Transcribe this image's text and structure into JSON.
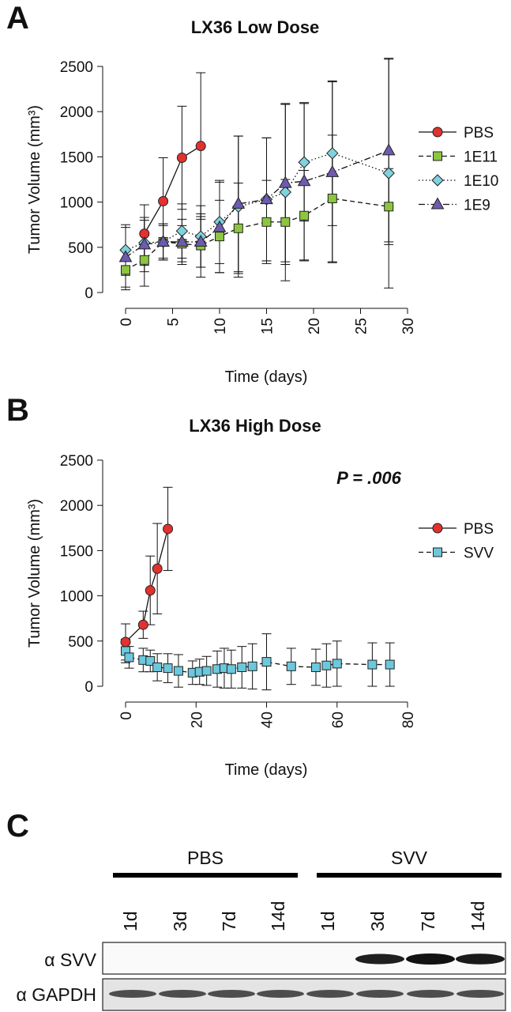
{
  "panel_labels": [
    "A",
    "B",
    "C"
  ],
  "chart_data": [
    {
      "type": "line",
      "title": "LX36 Low Dose",
      "x_label": "Time (days)",
      "y_label": "Tumor Volume (mm³)",
      "xlim": [
        0,
        30
      ],
      "xticks": [
        0,
        5,
        10,
        15,
        20,
        25,
        30
      ],
      "ylim": [
        0,
        2500
      ],
      "yticks": [
        0,
        500,
        1000,
        1500,
        2000,
        2500
      ],
      "legend": "right",
      "series": [
        {
          "name": "PBS",
          "color": "#e2312f",
          "marker": "circle",
          "line_style": "solid",
          "x": [
            2,
            4,
            6,
            8
          ],
          "values": [
            650,
            1010,
            1490,
            1620
          ],
          "errors": [
            320,
            480,
            570,
            810
          ]
        },
        {
          "name": "1E11",
          "color": "#8cc63e",
          "marker": "square",
          "line_style": "dashed",
          "x": [
            0,
            2,
            4,
            6,
            8,
            10,
            12,
            15,
            17,
            19,
            22,
            28
          ],
          "values": [
            250,
            360,
            560,
            540,
            520,
            620,
            710,
            780,
            780,
            850,
            1040,
            950
          ],
          "errors": [
            220,
            290,
            200,
            200,
            350,
            400,
            500,
            460,
            470,
            500,
            700,
            420
          ]
        },
        {
          "name": "1E10",
          "color": "#7fd3df",
          "marker": "diamond",
          "line_style": "dotted",
          "x": [
            0,
            2,
            4,
            6,
            8,
            10,
            12,
            15,
            17,
            19,
            22,
            28
          ],
          "values": [
            470,
            550,
            560,
            680,
            620,
            780,
            950,
            1030,
            1110,
            1440,
            1540,
            1320
          ],
          "errors": [
            280,
            250,
            200,
            300,
            340,
            460,
            780,
            680,
            980,
            650,
            800,
            1270
          ]
        },
        {
          "name": "1E9",
          "color": "#6e5baf",
          "marker": "triangle",
          "line_style": "dotdash",
          "x": [
            0,
            2,
            4,
            6,
            8,
            10,
            12,
            15,
            17,
            19,
            22,
            28
          ],
          "values": [
            390,
            530,
            560,
            560,
            560,
            720,
            980,
            1030,
            1210,
            1230,
            1330,
            1570
          ],
          "errors": [
            330,
            300,
            180,
            250,
            280,
            500,
            750,
            680,
            870,
            870,
            1000,
            1010
          ]
        }
      ]
    },
    {
      "type": "line",
      "title": "LX36 High Dose",
      "x_label": "Time (days)",
      "y_label": "Tumor Volume (mm³)",
      "annotation": "P = .006",
      "xlim": [
        0,
        80
      ],
      "xticks": [
        0,
        20,
        40,
        60,
        80
      ],
      "ylim": [
        0,
        2500
      ],
      "yticks": [
        0,
        500,
        1000,
        1500,
        2000,
        2500
      ],
      "legend": "right",
      "series": [
        {
          "name": "PBS",
          "color": "#e2312f",
          "marker": "circle",
          "line_style": "solid",
          "x": [
            0,
            5,
            7,
            9,
            12
          ],
          "values": [
            490,
            680,
            1060,
            1300,
            1740
          ],
          "errors": [
            200,
            150,
            380,
            500,
            460
          ]
        },
        {
          "name": "SVV",
          "color": "#6cc8dc",
          "marker": "square",
          "line_style": "dashed",
          "x": [
            0,
            1,
            5,
            7,
            9,
            12,
            15,
            19,
            21,
            23,
            26,
            28,
            30,
            33,
            36,
            40,
            47,
            54,
            57,
            60,
            70,
            75
          ],
          "values": [
            390,
            320,
            290,
            280,
            210,
            200,
            170,
            150,
            160,
            170,
            190,
            200,
            190,
            210,
            220,
            270,
            220,
            210,
            230,
            250,
            240,
            240
          ],
          "errors": [
            130,
            120,
            130,
            120,
            150,
            160,
            180,
            130,
            140,
            160,
            200,
            220,
            210,
            230,
            250,
            310,
            200,
            200,
            240,
            250,
            240,
            240
          ]
        }
      ]
    }
  ],
  "blot": {
    "groups": [
      "PBS",
      "SVV"
    ],
    "lanes": [
      "1d",
      "3d",
      "7d",
      "14d",
      "1d",
      "3d",
      "7d",
      "14d"
    ],
    "rows": [
      "α SVV",
      "α GAPDH"
    ]
  }
}
